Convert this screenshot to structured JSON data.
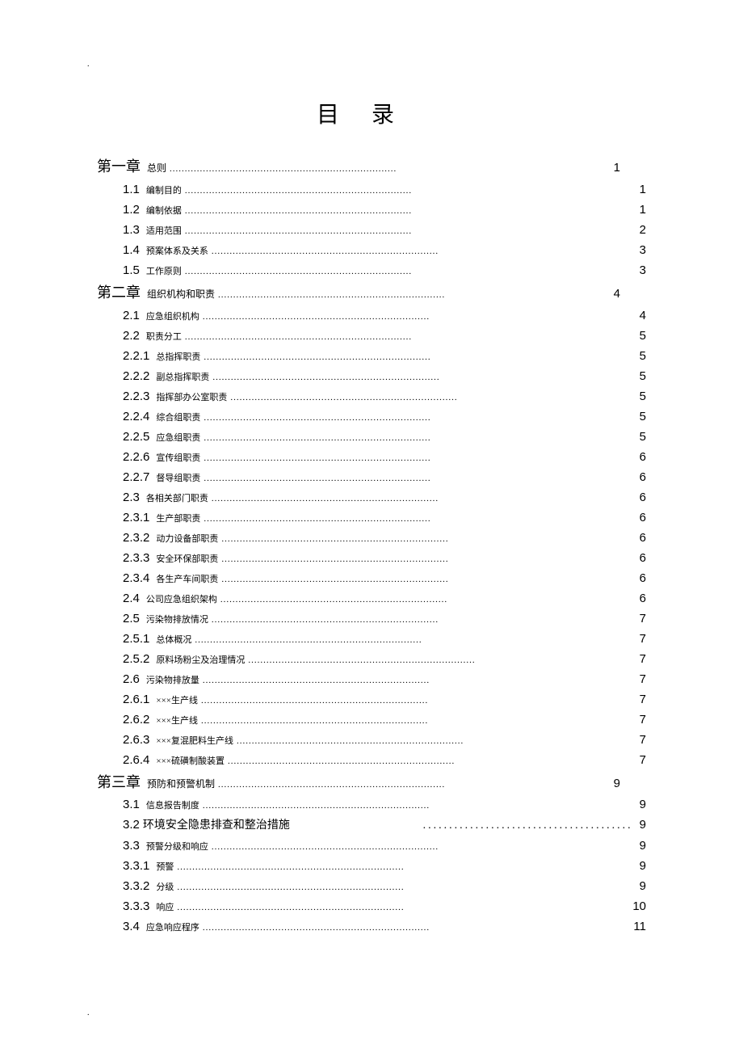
{
  "title": "目录",
  "dots_short": "...........................................................................",
  "dots_wide": "........................................",
  "entries": [
    {
      "level": "chapter",
      "num": "第一章",
      "label": "总则",
      "page": "1"
    },
    {
      "level": "section",
      "num": "1.1",
      "label": "编制目的",
      "page": "1"
    },
    {
      "level": "section",
      "num": "1.2",
      "label": "编制依据",
      "page": "1"
    },
    {
      "level": "section",
      "num": "1.3",
      "label": "适用范围",
      "page": "2"
    },
    {
      "level": "section",
      "num": "1.4",
      "label": "预案体系及关系",
      "page": "3"
    },
    {
      "level": "section",
      "num": "1.5",
      "label": "工作原则",
      "page": "3"
    },
    {
      "level": "chapter",
      "num": "第二章",
      "label": "组织机构和职责",
      "page": "4"
    },
    {
      "level": "section",
      "num": "2.1",
      "label": "应急组织机构",
      "page": "4"
    },
    {
      "level": "section",
      "num": "2.2",
      "label": "职责分工",
      "page": "5"
    },
    {
      "level": "section",
      "num": "2.2.1",
      "label": "总指挥职责",
      "page": "5"
    },
    {
      "level": "section",
      "num": "2.2.2",
      "label": "副总指挥职责",
      "page": "5"
    },
    {
      "level": "section",
      "num": "2.2.3",
      "label": "指挥部办公室职责",
      "page": "5"
    },
    {
      "level": "section",
      "num": "2.2.4",
      "label": "综合组职责",
      "page": "5"
    },
    {
      "level": "section",
      "num": "2.2.5",
      "label": "应急组职责",
      "page": "5"
    },
    {
      "level": "section",
      "num": "2.2.6",
      "label": "宣传组职责",
      "page": "6"
    },
    {
      "level": "section",
      "num": "2.2.7",
      "label": "督导组职责",
      "page": "6"
    },
    {
      "level": "section",
      "num": "2.3",
      "label": "各相关部门职责",
      "page": "6"
    },
    {
      "level": "section",
      "num": "2.3.1",
      "label": "生产部职责",
      "page": "6"
    },
    {
      "level": "section",
      "num": "2.3.2",
      "label": "动力设备部职责",
      "page": "6"
    },
    {
      "level": "section",
      "num": "2.3.3",
      "label": "安全环保部职责",
      "page": "6"
    },
    {
      "level": "section",
      "num": "2.3.4",
      "label": "各生产车间职责",
      "page": "6"
    },
    {
      "level": "section",
      "num": "2.4",
      "label": "公司应急组织架构",
      "page": "6"
    },
    {
      "level": "section",
      "num": "2.5",
      "label": "污染物排放情况",
      "page": "7"
    },
    {
      "level": "section",
      "num": "2.5.1",
      "label": "总体概况",
      "page": "7"
    },
    {
      "level": "section",
      "num": "2.5.2",
      "label": "原料场粉尘及治理情况",
      "page": "7"
    },
    {
      "level": "section",
      "num": "2.6",
      "label": "污染物排放量",
      "page": "7"
    },
    {
      "level": "section",
      "num": "2.6.1",
      "label": "×××生产线",
      "page": "7"
    },
    {
      "level": "section",
      "num": "2.6.2",
      "label": "×××生产线",
      "page": "7"
    },
    {
      "level": "section",
      "num": "2.6.3",
      "label": "×××复混肥料生产线",
      "page": "7"
    },
    {
      "level": "section",
      "num": "2.6.4",
      "label": "×××硫磺制酸装置",
      "page": "7"
    },
    {
      "level": "chapter",
      "num": "第三章",
      "label": "预防和预警机制",
      "page": "9"
    },
    {
      "level": "section",
      "num": "3.1",
      "label": "信息报告制度",
      "page": "9"
    },
    {
      "level": "section-lg",
      "num": "3.2",
      "label": "环境安全隐患排查和整治措施",
      "page": "9"
    },
    {
      "level": "section",
      "num": "3.3",
      "label": "预警分级和响应",
      "page": "9"
    },
    {
      "level": "section",
      "num": "3.3.1",
      "label": "预警",
      "page": "9"
    },
    {
      "level": "section",
      "num": "3.3.2",
      "label": "分级",
      "page": "9"
    },
    {
      "level": "section",
      "num": "3.3.3",
      "label": "响应",
      "page": "10"
    },
    {
      "level": "section",
      "num": "3.4",
      "label": "应急响应程序",
      "page": "11"
    }
  ],
  "colors": {
    "background": "#ffffff",
    "text": "#000000"
  }
}
